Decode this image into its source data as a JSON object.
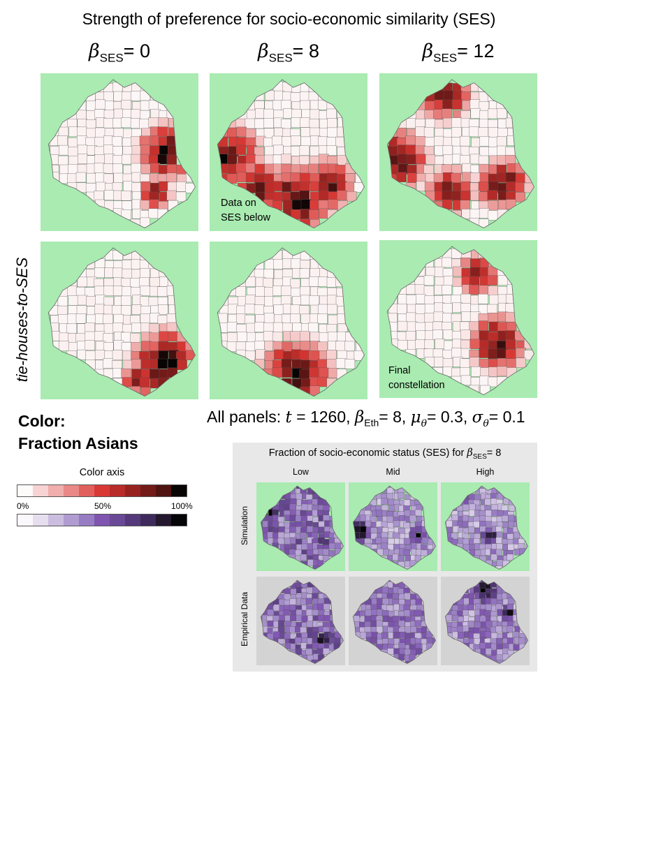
{
  "title": "Strength of preference for socio-economic similarity (SES)",
  "columns": [
    {
      "symbol": "β",
      "subscript": "SES",
      "suffix": "= 0"
    },
    {
      "symbol": "β",
      "subscript": "SES",
      "suffix": "= 8"
    },
    {
      "symbol": "β",
      "subscript": "SES",
      "suffix": "= 12"
    }
  ],
  "row_label": "tie-houses-to-SES",
  "panel_notes": {
    "data_on_ses_line1": "Data on",
    "data_on_ses_line2": "SES below",
    "final_line1": "Final",
    "final_line2": "constellation"
  },
  "all_panels": {
    "prefix": "All panels: ",
    "t_symbol": "t",
    "t_value": " = 1260, ",
    "beta_symbol": "β",
    "beta_sub": "Eth",
    "beta_value": "= 8, ",
    "mu_symbol": "μ",
    "mu_sub": "θ",
    "mu_value": "= 0.3, ",
    "sigma_symbol": "σ",
    "sigma_sub": "θ",
    "sigma_value": "= 0.1"
  },
  "legend": {
    "line1": "Color:",
    "line2": "Fraction Asians",
    "axis_title": "Color axis",
    "tick_0": "0%",
    "tick_50": "50%",
    "tick_100": "100%",
    "red_scale": [
      "#fdfafa",
      "#f7d4d3",
      "#f0aeac",
      "#e88987",
      "#e1605d",
      "#d93935",
      "#b82c29",
      "#962320",
      "#731b19",
      "#4f1312",
      "#0a0505"
    ],
    "purple_scale": [
      "#faf8fc",
      "#e6ddef",
      "#cbbde0",
      "#b09cd1",
      "#977cc3",
      "#7f55b0",
      "#6a4a96",
      "#55397a",
      "#3f2a5c",
      "#24182f",
      "#050406"
    ]
  },
  "ses_inset": {
    "title_prefix": "Fraction of socio-economic status (SES)  for ",
    "beta_symbol": "β",
    "beta_sub": "SES",
    "beta_value": "= 8",
    "columns": [
      "Low",
      "Mid",
      "High"
    ],
    "rows": [
      "Simulation",
      "Empirical Data"
    ]
  },
  "colors": {
    "map_background_green": "#a9ebb1",
    "map_background_gray": "#d3d3d3",
    "inset_background": "#e8e8e8"
  }
}
